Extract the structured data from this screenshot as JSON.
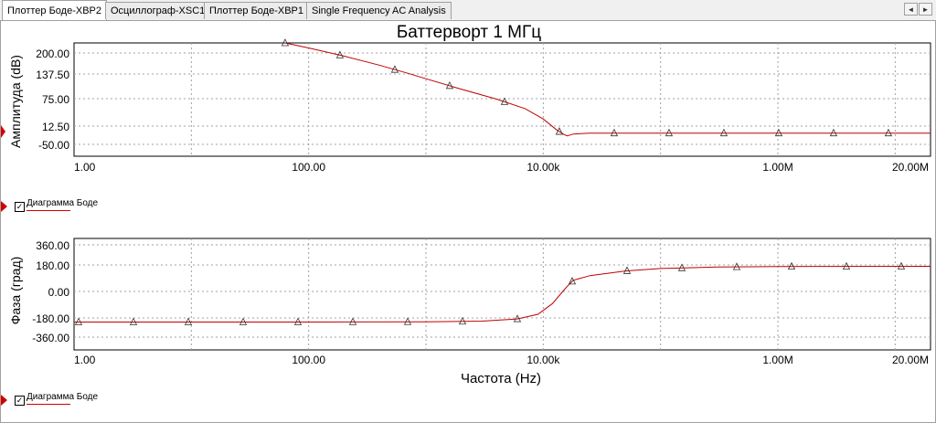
{
  "tabs": [
    {
      "label": "Плоттер Боде-XBP2",
      "active": true
    },
    {
      "label": "Осциллограф-XSC1",
      "active": false
    },
    {
      "label": "Плоттер Боде-XBP1",
      "active": false
    },
    {
      "label": "Single Frequency AC Analysis",
      "active": false
    }
  ],
  "nav": {
    "prev": "◄",
    "next": "►"
  },
  "title": "Баттерворт 1 МГц",
  "legend_label": "Диаграмма Боде",
  "colors": {
    "trace": "#c00000",
    "grid": "#a0a0a0",
    "marker": "#d00000"
  },
  "chart_data": [
    {
      "type": "line",
      "title": "Баттерворт 1 МГц",
      "ylabel": "Амплитуда (dB)",
      "xlabel": "",
      "x_scale": "log",
      "xlim": [
        1,
        20000000
      ],
      "ylim": [
        -50,
        200
      ],
      "y_ticks": [
        "200.00",
        "137.50",
        "75.00",
        "12.50",
        "-50.00"
      ],
      "x_ticks": [
        "1.00",
        "100.00",
        "10.00k",
        "1.00M",
        "20.00M"
      ],
      "grid": true,
      "legend": "bottom-left",
      "series": [
        {
          "name": "Диаграмма Боде",
          "x": [
            63,
            100,
            200,
            400,
            700,
            1000,
            2000,
            4000,
            7000,
            10000,
            13000,
            15000,
            16000,
            18000,
            25000,
            50000,
            100000,
            1000000,
            20000000
          ],
          "y": [
            200,
            189,
            171,
            151,
            133,
            121,
            98,
            76,
            55,
            32,
            8,
            -2,
            -5,
            -1,
            1,
            1,
            1,
            1,
            1
          ],
          "markers": true
        }
      ]
    },
    {
      "type": "line",
      "ylabel": "Фаза (град)",
      "xlabel": "Частота (Hz)",
      "x_scale": "log",
      "xlim": [
        1,
        20000000
      ],
      "ylim": [
        -360,
        360
      ],
      "y_ticks": [
        "360.00",
        "180.00",
        "0.00",
        "-180.00",
        "-360.00"
      ],
      "x_ticks": [
        "1.00",
        "100.00",
        "10.00k",
        "1.00M",
        "20.00M"
      ],
      "grid": true,
      "legend": "bottom-left",
      "series": [
        {
          "name": "Диаграмма Боде",
          "x": [
            1,
            10,
            100,
            1000,
            3000,
            6000,
            9000,
            12000,
            14000,
            16000,
            18000,
            25000,
            50000,
            100000,
            300000,
            1000000,
            20000000
          ],
          "y": [
            -180,
            -180,
            -180,
            -178,
            -174,
            -160,
            -130,
            -60,
            0,
            50,
            90,
            120,
            150,
            166,
            175,
            179,
            180
          ],
          "markers": true
        }
      ]
    }
  ]
}
